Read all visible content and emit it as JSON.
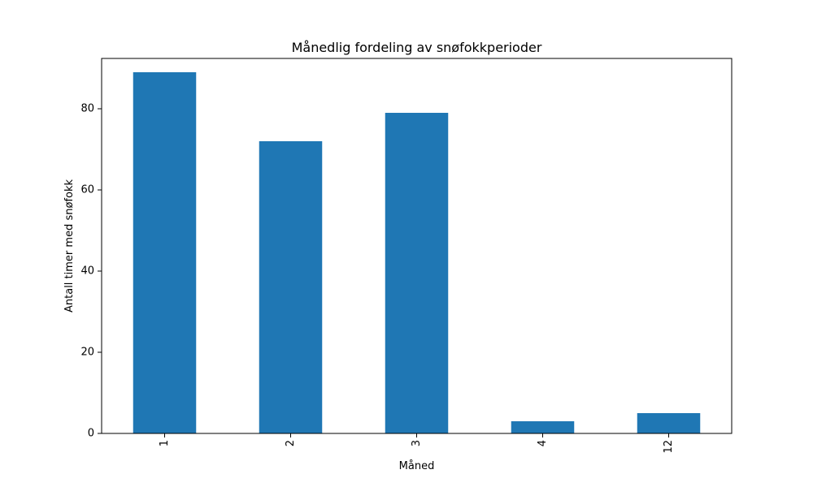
{
  "chart_data": {
    "type": "bar",
    "title": "Månedlig fordeling av snøfokkperioder",
    "xlabel": "Måned",
    "ylabel": "Antall timer med snøfokk",
    "categories": [
      "1",
      "2",
      "3",
      "4",
      "12"
    ],
    "values": [
      89,
      72,
      79,
      3,
      5
    ],
    "ylim": [
      0,
      92.4
    ],
    "yticks": [
      0,
      20,
      40,
      60,
      80
    ],
    "grid": false,
    "legend": false,
    "bar_color": "#1f77b4"
  }
}
